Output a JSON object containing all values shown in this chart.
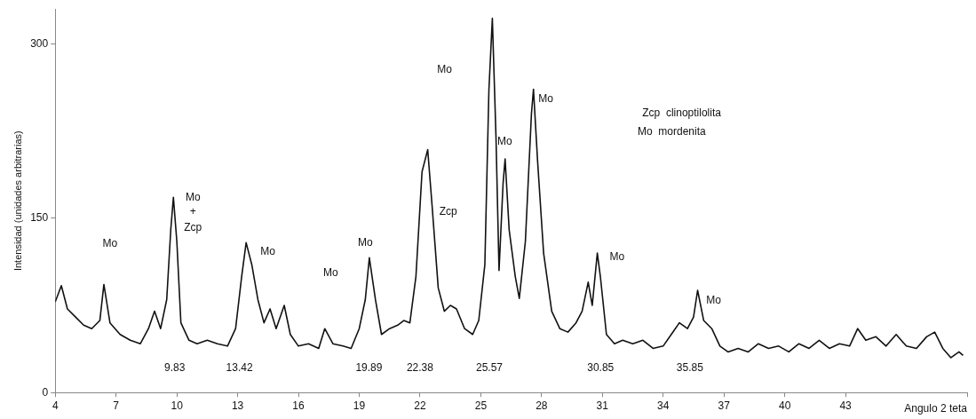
{
  "chart_data": {
    "type": "line",
    "ylabel": "Intensidad (unidades arbitrarias)",
    "xlabel": "Angulo 2 teta",
    "x": [
      4.0,
      4.3,
      4.6,
      5.0,
      5.4,
      5.8,
      6.2,
      6.4,
      6.7,
      7.2,
      7.7,
      8.2,
      8.6,
      8.9,
      9.2,
      9.5,
      9.7,
      9.83,
      10.0,
      10.2,
      10.6,
      11.0,
      11.5,
      12.0,
      12.5,
      12.9,
      13.2,
      13.42,
      13.7,
      14.0,
      14.3,
      14.6,
      14.9,
      15.3,
      15.6,
      16.0,
      16.5,
      17.0,
      17.3,
      17.7,
      18.2,
      18.6,
      19.0,
      19.3,
      19.5,
      19.8,
      20.1,
      20.5,
      20.9,
      21.2,
      21.5,
      21.8,
      22.1,
      22.38,
      22.6,
      22.9,
      23.2,
      23.5,
      23.8,
      24.2,
      24.6,
      24.9,
      25.2,
      25.4,
      25.57,
      25.75,
      25.9,
      26.1,
      26.2,
      26.4,
      26.7,
      26.9,
      27.2,
      27.5,
      27.6,
      27.8,
      28.1,
      28.5,
      28.9,
      29.3,
      29.7,
      30.0,
      30.3,
      30.5,
      30.75,
      30.9,
      31.2,
      31.6,
      32.0,
      32.5,
      33.0,
      33.5,
      34.0,
      34.4,
      34.8,
      35.2,
      35.5,
      35.7,
      36.0,
      36.4,
      36.8,
      37.2,
      37.7,
      38.2,
      38.7,
      39.2,
      39.7,
      40.2,
      40.7,
      41.2,
      41.7,
      42.2,
      42.7,
      43.2,
      43.6,
      44.0,
      44.5,
      45.0,
      45.5,
      46.0,
      46.5,
      47.0,
      47.4,
      47.8,
      48.2,
      48.6,
      48.8
    ],
    "series": [
      {
        "color": "#111111",
        "values": [
          78,
          92,
          72,
          65,
          58,
          55,
          62,
          93,
          60,
          50,
          45,
          42,
          55,
          70,
          55,
          80,
          140,
          168,
          130,
          60,
          45,
          42,
          45,
          42,
          40,
          55,
          100,
          129,
          110,
          80,
          60,
          72,
          55,
          75,
          50,
          40,
          42,
          38,
          55,
          42,
          40,
          38,
          55,
          80,
          116,
          80,
          50,
          55,
          58,
          62,
          60,
          100,
          190,
          209,
          160,
          90,
          70,
          75,
          72,
          55,
          50,
          62,
          110,
          260,
          322,
          220,
          105,
          180,
          201,
          140,
          100,
          81,
          130,
          240,
          261,
          200,
          120,
          70,
          55,
          52,
          60,
          70,
          95,
          75,
          120,
          100,
          50,
          42,
          45,
          42,
          45,
          38,
          40,
          50,
          60,
          55,
          65,
          88,
          62,
          55,
          40,
          35,
          38,
          35,
          42,
          38,
          40,
          35,
          42,
          38,
          45,
          38,
          42,
          40,
          55,
          45,
          48,
          40,
          50,
          40,
          38,
          48,
          52,
          38,
          30,
          35,
          32
        ]
      }
    ],
    "xlim": [
      4,
      49
    ],
    "xticks": [
      4,
      7,
      10,
      13,
      16,
      19,
      22,
      25,
      28,
      31,
      34,
      37,
      40,
      43,
      {
        "value": 49,
        "label": null
      }
    ],
    "ylim": [
      0,
      330
    ],
    "yticks": [
      0,
      150,
      300
    ],
    "grid": false,
    "legend": false,
    "marker": "none",
    "line_style": "solid",
    "annotations": [
      "Mo",
      "Mo",
      "+",
      "Zcp",
      "Mo",
      "Mo",
      "Mo",
      "Zcp",
      "Mo",
      "Mo",
      "Mo",
      "Mo",
      "Mo",
      "Zcp  clinoptilolita",
      "Mo  mordenita",
      "9.83",
      "13.42",
      "19.89",
      "22.38",
      "25.57",
      "30.85",
      "35.85"
    ]
  }
}
